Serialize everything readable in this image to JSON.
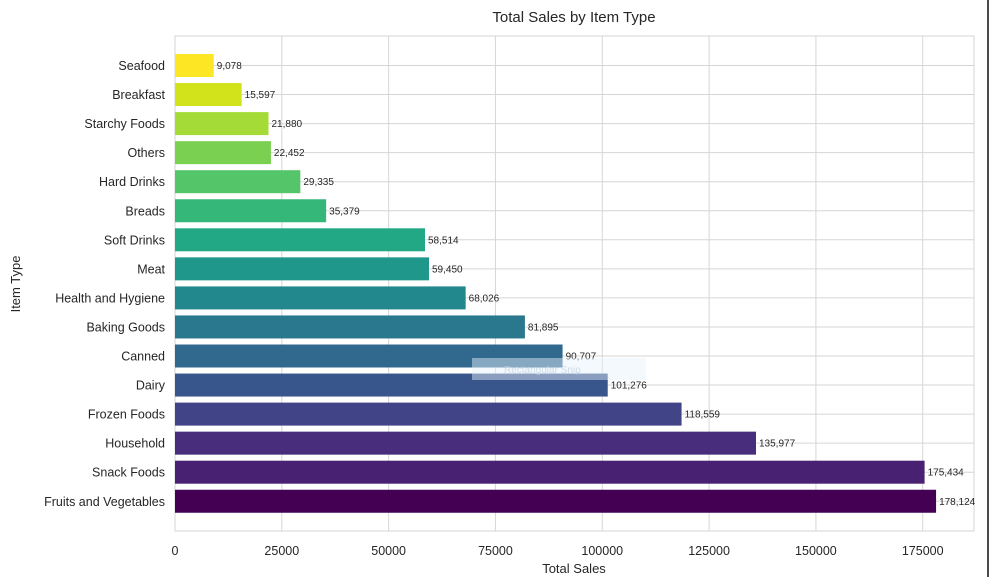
{
  "chart_data": {
    "type": "bar",
    "orientation": "horizontal",
    "title": "Total Sales by Item Type",
    "xlabel": "Total Sales",
    "ylabel": "Item Type",
    "xlim": [
      0,
      187000
    ],
    "xticks": [
      0,
      25000,
      50000,
      75000,
      100000,
      125000,
      150000,
      175000
    ],
    "xtick_labels": [
      "0",
      "25000",
      "50000",
      "75000",
      "100000",
      "125000",
      "150000",
      "175000"
    ],
    "grid": true,
    "categories": [
      "Seafood",
      "Breakfast",
      "Starchy Foods",
      "Others",
      "Hard Drinks",
      "Breads",
      "Soft Drinks",
      "Meat",
      "Health and Hygiene",
      "Baking Goods",
      "Canned",
      "Dairy",
      "Frozen Foods",
      "Household",
      "Snack Foods",
      "Fruits and Vegetables"
    ],
    "values": [
      9078,
      15597,
      21880,
      22452,
      29335,
      35379,
      58514,
      59450,
      68026,
      81895,
      90707,
      101276,
      118559,
      135977,
      175434,
      178124
    ],
    "value_labels": [
      "9,078",
      "15,597",
      "21,880",
      "22,452",
      "29,335",
      "35,379",
      "58,514",
      "59,450",
      "68,026",
      "81,895",
      "90,707",
      "101,276",
      "118,559",
      "135,977",
      "175,434",
      "178,124"
    ],
    "colors": [
      "#fde725",
      "#d2e21b",
      "#a5db36",
      "#7ad151",
      "#54c568",
      "#35b779",
      "#22a884",
      "#1f988b",
      "#23888e",
      "#2a788e",
      "#31688e",
      "#39568c",
      "#414487",
      "#472d7b",
      "#482173",
      "#440154"
    ],
    "palette": "viridis",
    "watermark": "Rectangular Snip"
  }
}
